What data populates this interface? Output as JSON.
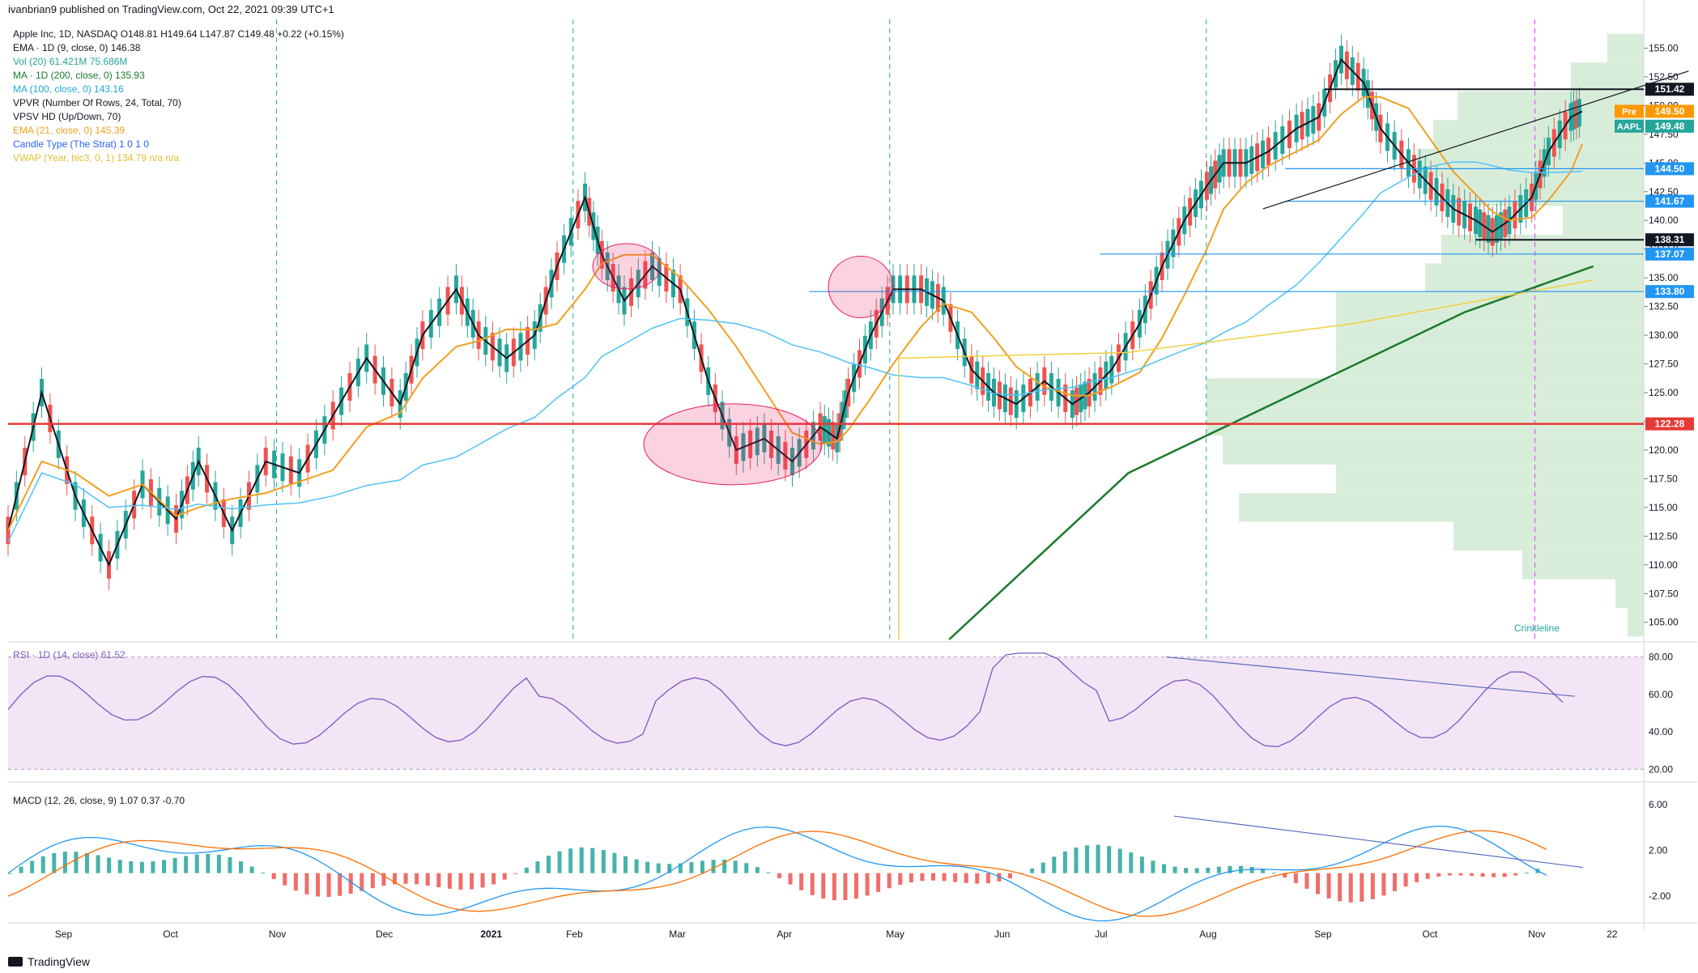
{
  "header": {
    "published": "ivanbrian9 published on TradingView.com, Oct 22, 2021 09:39 UTC+1"
  },
  "legend": [
    {
      "text": "Apple Inc, 1D, NASDAQ  O148.81  H149.64  L147.87  C149.48  +0.22 (+0.15%)",
      "color": "#131722"
    },
    {
      "text": "EMA · 1D (9, close, 0)  146.38",
      "color": "#131722"
    },
    {
      "text": "Vol (20)  61.421M  75.686M",
      "color": "#26a69a"
    },
    {
      "text": "MA · 1D (200, close, 0)  135.93",
      "color": "#1b7a2e"
    },
    {
      "text": "MA (100, close, 0)  143.16",
      "color": "#22a7d6"
    },
    {
      "text": "VPVR (Number Of Rows, 24, Total, 70)",
      "color": "#131722"
    },
    {
      "text": "VPSV HD (Up/Down, 70)",
      "color": "#131722"
    },
    {
      "text": "EMA (21, close, 0)  145.39",
      "color": "#f0a020"
    },
    {
      "text": "Candle Type (The Strat)  1  0  1  0",
      "color": "#2962ff"
    },
    {
      "text": "VWAP (Year, hlc3, 0, 1)  134.79  n/a  n/a",
      "color": "#e0c030"
    }
  ],
  "rsi_label": "RSI · 1D (14, close)  61.52",
  "macd_label": "MACD (12, 26, close, 9)  1.07  0.37  -0.70",
  "footer": {
    "brand": "TradingView"
  },
  "watermark": "Crinkleline",
  "chart_data": {
    "type": "line",
    "title": "Apple Inc, 1D, NASDAQ",
    "symbol": "AAPL",
    "price_axis": {
      "ticks": [
        105.0,
        107.5,
        110.0,
        112.5,
        115.0,
        117.5,
        120.0,
        122.5,
        125.0,
        127.5,
        130.0,
        132.5,
        135.0,
        137.5,
        140.0,
        142.5,
        145.0,
        147.5,
        150.0,
        152.5,
        155.0
      ],
      "ylim": [
        103.5,
        157.5
      ]
    },
    "rsi_axis": {
      "ticks": [
        20.0,
        40.0,
        60.0,
        80.0
      ],
      "ylim": [
        15,
        85
      ]
    },
    "macd_axis": {
      "ticks": [
        -2.0,
        2.0,
        6.0
      ],
      "ylim": [
        -4,
        7
      ]
    },
    "x_labels": [
      "Sep",
      "Oct",
      "Nov",
      "Dec",
      "2021",
      "Feb",
      "Mar",
      "Apr",
      "May",
      "Jun",
      "Jul",
      "Aug",
      "Sep",
      "Oct",
      "Nov",
      "22"
    ],
    "price_labels": [
      {
        "value": "151.42",
        "bg": "#131722",
        "color": "#ffffff"
      },
      {
        "value": "149.50",
        "bg": "#ff9800",
        "color": "#ffffff",
        "tag": "Pre"
      },
      {
        "value": "149.48",
        "bg": "#26a69a",
        "color": "#ffffff",
        "tag": "AAPL"
      },
      {
        "value": "144.50",
        "bg": "#2196f3",
        "color": "#ffffff"
      },
      {
        "value": "141.67",
        "bg": "#2196f3",
        "color": "#ffffff"
      },
      {
        "value": "138.31",
        "bg": "#131722",
        "color": "#ffffff"
      },
      {
        "value": "137.07",
        "bg": "#2196f3",
        "color": "#ffffff"
      },
      {
        "value": "133.80",
        "bg": "#2196f3",
        "color": "#ffffff"
      },
      {
        "value": "122.28",
        "bg": "#e53935",
        "color": "#ffffff"
      }
    ],
    "horizontal_levels": [
      151.42,
      144.5,
      141.67,
      138.31,
      137.07,
      133.8,
      122.28
    ],
    "series": [
      {
        "name": "Close",
        "points": [
          [
            0,
            113
          ],
          [
            0.6,
            125
          ],
          [
            1.2,
            116
          ],
          [
            1.8,
            110
          ],
          [
            2.4,
            117
          ],
          [
            3.0,
            114
          ],
          [
            3.4,
            119
          ],
          [
            4.0,
            113
          ],
          [
            4.6,
            119
          ],
          [
            5.2,
            118
          ],
          [
            5.8,
            123
          ],
          [
            6.4,
            128
          ],
          [
            7.0,
            124
          ],
          [
            7.4,
            130
          ],
          [
            8.0,
            134
          ],
          [
            8.4,
            130
          ],
          [
            8.9,
            128
          ],
          [
            9.4,
            130
          ],
          [
            9.8,
            136
          ],
          [
            10.3,
            142
          ],
          [
            10.6,
            137
          ],
          [
            11.0,
            133
          ],
          [
            11.5,
            136
          ],
          [
            12.0,
            134
          ],
          [
            12.5,
            126
          ],
          [
            13.0,
            120
          ],
          [
            13.5,
            121
          ],
          [
            14.0,
            119
          ],
          [
            14.5,
            122
          ],
          [
            14.8,
            121
          ],
          [
            15.0,
            125
          ],
          [
            15.4,
            130
          ],
          [
            15.8,
            134
          ],
          [
            16.3,
            134
          ],
          [
            16.7,
            133
          ],
          [
            17.2,
            127
          ],
          [
            17.6,
            125
          ],
          [
            18.0,
            124
          ],
          [
            18.5,
            126
          ],
          [
            19.0,
            124
          ],
          [
            19.3,
            125
          ],
          [
            19.7,
            127
          ],
          [
            20.2,
            131
          ],
          [
            20.6,
            136
          ],
          [
            21.0,
            140
          ],
          [
            21.4,
            143
          ],
          [
            21.7,
            145
          ],
          [
            22.1,
            145
          ],
          [
            22.5,
            146
          ],
          [
            23.0,
            148
          ],
          [
            23.4,
            149
          ],
          [
            23.8,
            154
          ],
          [
            24.2,
            152
          ],
          [
            24.5,
            148
          ],
          [
            25.0,
            145
          ],
          [
            25.4,
            143
          ],
          [
            25.8,
            141
          ],
          [
            26.2,
            140
          ],
          [
            26.5,
            139
          ],
          [
            26.8,
            140
          ],
          [
            27.2,
            142
          ],
          [
            27.5,
            146
          ],
          [
            27.9,
            149
          ],
          [
            28.1,
            149.5
          ]
        ]
      },
      {
        "name": "EMA 9"
      },
      {
        "name": "EMA 21"
      },
      {
        "name": "MA 100"
      },
      {
        "name": "MA 200"
      },
      {
        "name": "VWAP"
      }
    ]
  }
}
